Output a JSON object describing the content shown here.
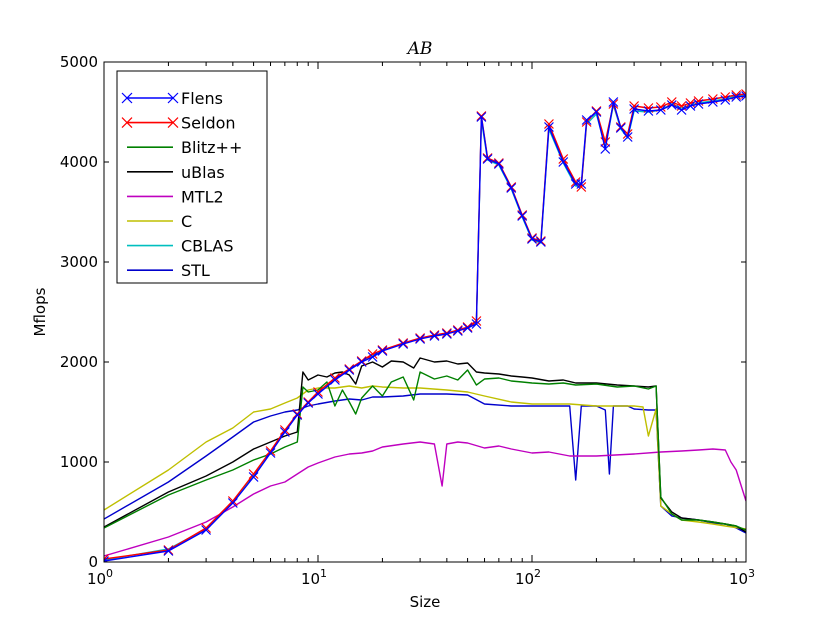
{
  "chart_data": {
    "type": "line",
    "title": "AB",
    "xlabel": "Size",
    "ylabel": "Mflops",
    "xscale": "log",
    "xlim": [
      1,
      1000
    ],
    "ylim": [
      0,
      5000
    ],
    "x_ticks": [
      {
        "value": 1,
        "base": "10",
        "exp": "0"
      },
      {
        "value": 10,
        "base": "10",
        "exp": "1"
      },
      {
        "value": 100,
        "base": "10",
        "exp": "2"
      },
      {
        "value": 1000,
        "base": "10",
        "exp": "3"
      }
    ],
    "y_ticks": [
      {
        "value": 0,
        "label": "0"
      },
      {
        "value": 1000,
        "label": "1000"
      },
      {
        "value": 2000,
        "label": "2000"
      },
      {
        "value": 3000,
        "label": "3000"
      },
      {
        "value": 4000,
        "label": "4000"
      },
      {
        "value": 5000,
        "label": "5000"
      }
    ],
    "legend_position": "top-left",
    "series": [
      {
        "name": "Flens",
        "color": "#0000ff",
        "marker": "x",
        "x": [
          1,
          2,
          3,
          4,
          5,
          6,
          7,
          8,
          9,
          10,
          12,
          14,
          16,
          18,
          20,
          25,
          30,
          35,
          40,
          45,
          50,
          55,
          58,
          62,
          70,
          80,
          90,
          100,
          110,
          120,
          140,
          160,
          170,
          180,
          200,
          220,
          240,
          260,
          280,
          300,
          350,
          400,
          450,
          500,
          550,
          600,
          700,
          800,
          900,
          1000
        ],
        "y": [
          10,
          110,
          320,
          590,
          850,
          1090,
          1300,
          1470,
          1590,
          1680,
          1820,
          1920,
          2000,
          2050,
          2110,
          2180,
          2230,
          2260,
          2280,
          2310,
          2340,
          2380,
          4450,
          4030,
          3980,
          3740,
          3460,
          3230,
          3200,
          4350,
          4000,
          3780,
          3780,
          4420,
          4500,
          4130,
          4600,
          4340,
          4250,
          4530,
          4510,
          4520,
          4570,
          4520,
          4560,
          4580,
          4600,
          4620,
          4650,
          4660
        ]
      },
      {
        "name": "Seldon",
        "color": "#ff0000",
        "marker": "x",
        "x": [
          1,
          2,
          3,
          4,
          5,
          6,
          7,
          8,
          9,
          10,
          12,
          14,
          16,
          18,
          20,
          25,
          30,
          35,
          40,
          45,
          50,
          55,
          58,
          62,
          70,
          80,
          90,
          100,
          110,
          120,
          140,
          160,
          170,
          180,
          200,
          220,
          240,
          260,
          280,
          300,
          350,
          400,
          450,
          500,
          550,
          600,
          700,
          800,
          900,
          1000
        ],
        "y": [
          30,
          120,
          340,
          610,
          880,
          1110,
          1320,
          1480,
          1600,
          1700,
          1840,
          1930,
          2010,
          2080,
          2120,
          2190,
          2240,
          2270,
          2290,
          2320,
          2350,
          2410,
          4460,
          4040,
          3990,
          3750,
          3470,
          3240,
          3210,
          4380,
          4030,
          3800,
          3750,
          4400,
          4510,
          4200,
          4580,
          4350,
          4280,
          4560,
          4540,
          4550,
          4600,
          4560,
          4590,
          4610,
          4630,
          4650,
          4670,
          4680
        ]
      },
      {
        "name": "Blitz++",
        "color": "#008000",
        "marker": "",
        "x": [
          1,
          2,
          3,
          4,
          5,
          6,
          7,
          8,
          8.5,
          9,
          10,
          11,
          12,
          13,
          14,
          15,
          16,
          18,
          20,
          22,
          25,
          28,
          30,
          35,
          40,
          45,
          50,
          55,
          60,
          70,
          80,
          90,
          100,
          120,
          140,
          160,
          200,
          250,
          300,
          350,
          380,
          400,
          450,
          500,
          600,
          700,
          800,
          900,
          1000
        ],
        "y": [
          340,
          670,
          820,
          920,
          1020,
          1080,
          1150,
          1200,
          1750,
          1700,
          1720,
          1800,
          1560,
          1720,
          1600,
          1480,
          1640,
          1760,
          1660,
          1800,
          1850,
          1620,
          1900,
          1830,
          1860,
          1820,
          1920,
          1770,
          1830,
          1840,
          1810,
          1800,
          1790,
          1780,
          1790,
          1770,
          1780,
          1750,
          1760,
          1730,
          1760,
          650,
          480,
          420,
          420,
          400,
          380,
          360,
          320
        ]
      },
      {
        "name": "uBlas",
        "color": "#000000",
        "marker": "",
        "x": [
          1,
          2,
          3,
          4,
          5,
          6,
          7,
          8,
          8.5,
          9,
          10,
          11,
          12,
          13,
          14,
          15,
          16,
          18,
          20,
          22,
          25,
          28,
          30,
          35,
          40,
          45,
          50,
          55,
          60,
          70,
          80,
          90,
          100,
          120,
          140,
          160,
          200,
          250,
          300,
          350,
          380,
          400,
          450,
          500,
          600,
          700,
          800,
          900,
          1000
        ],
        "y": [
          350,
          700,
          860,
          1000,
          1130,
          1200,
          1260,
          1300,
          1900,
          1820,
          1870,
          1850,
          1890,
          1900,
          1870,
          1780,
          1960,
          2000,
          1950,
          2010,
          2000,
          1940,
          2040,
          2000,
          2010,
          1980,
          1990,
          1900,
          1890,
          1880,
          1860,
          1850,
          1840,
          1810,
          1820,
          1790,
          1790,
          1770,
          1760,
          1750,
          1760,
          640,
          500,
          440,
          420,
          400,
          380,
          360,
          300
        ]
      },
      {
        "name": "MTL2",
        "color": "#bf00bf",
        "marker": "",
        "x": [
          1,
          2,
          3,
          4,
          5,
          6,
          7,
          8,
          9,
          10,
          12,
          14,
          16,
          18,
          20,
          25,
          30,
          35,
          38,
          40,
          45,
          50,
          60,
          70,
          80,
          100,
          120,
          150,
          200,
          300,
          400,
          500,
          600,
          700,
          800,
          850,
          900,
          1000
        ],
        "y": [
          60,
          250,
          400,
          550,
          680,
          760,
          800,
          880,
          950,
          990,
          1050,
          1080,
          1090,
          1110,
          1150,
          1180,
          1200,
          1180,
          760,
          1180,
          1200,
          1190,
          1140,
          1160,
          1130,
          1090,
          1100,
          1060,
          1060,
          1080,
          1100,
          1110,
          1120,
          1130,
          1120,
          1000,
          920,
          610
        ]
      },
      {
        "name": "C",
        "color": "#bfbf00",
        "marker": "",
        "x": [
          1,
          2,
          3,
          4,
          5,
          6,
          7,
          8,
          9,
          10,
          12,
          14,
          16,
          18,
          20,
          25,
          30,
          40,
          50,
          60,
          80,
          100,
          150,
          200,
          250,
          300,
          330,
          350,
          380,
          400,
          450,
          500,
          600,
          700,
          800,
          1000
        ],
        "y": [
          520,
          920,
          1200,
          1340,
          1500,
          1530,
          1590,
          1640,
          1720,
          1740,
          1740,
          1760,
          1740,
          1760,
          1750,
          1740,
          1740,
          1720,
          1700,
          1660,
          1600,
          1580,
          1580,
          1560,
          1560,
          1560,
          1550,
          1260,
          1530,
          560,
          480,
          420,
          400,
          380,
          360,
          330
        ]
      },
      {
        "name": "CBLAS",
        "color": "#00bfbf",
        "marker": "",
        "x": [
          1,
          2,
          3,
          4,
          5,
          6,
          7,
          8,
          9,
          10,
          12,
          14,
          16,
          18,
          20,
          25,
          30,
          35,
          40,
          45,
          50,
          55,
          58,
          62,
          70,
          80,
          90,
          100,
          110,
          120,
          140,
          160,
          170,
          180,
          200,
          220,
          240,
          260,
          280,
          300,
          350,
          400,
          450,
          500,
          550,
          600,
          700,
          800,
          900,
          1000
        ],
        "y": [
          20,
          130,
          330,
          600,
          860,
          1100,
          1310,
          1475,
          1595,
          1690,
          1830,
          1925,
          2005,
          2070,
          2115,
          2185,
          2235,
          2265,
          2285,
          2315,
          2345,
          2395,
          4420,
          4020,
          3970,
          3730,
          3450,
          3220,
          3190,
          4330,
          3990,
          3760,
          3760,
          4380,
          4480,
          4150,
          4570,
          4330,
          4240,
          4510,
          4500,
          4520,
          4580,
          4540,
          4570,
          4590,
          4610,
          4630,
          4660,
          4670
        ]
      },
      {
        "name": "STL",
        "color": "#0000cc",
        "marker": "",
        "x": [
          1,
          2,
          3,
          4,
          5,
          6,
          7,
          8,
          9,
          10,
          12,
          14,
          16,
          18,
          20,
          25,
          30,
          40,
          50,
          60,
          80,
          100,
          120,
          150,
          160,
          170,
          200,
          220,
          230,
          240,
          250,
          280,
          300,
          350,
          380,
          400,
          450,
          500,
          600,
          700,
          800,
          900,
          1000
        ],
        "y": [
          430,
          800,
          1060,
          1250,
          1400,
          1460,
          1500,
          1520,
          1560,
          1580,
          1610,
          1630,
          1620,
          1650,
          1650,
          1660,
          1680,
          1680,
          1670,
          1580,
          1560,
          1560,
          1560,
          1560,
          820,
          1560,
          1560,
          1520,
          880,
          1560,
          1560,
          1560,
          1530,
          1520,
          1520,
          560,
          460,
          440,
          420,
          390,
          380,
          340,
          290
        ]
      }
    ]
  }
}
